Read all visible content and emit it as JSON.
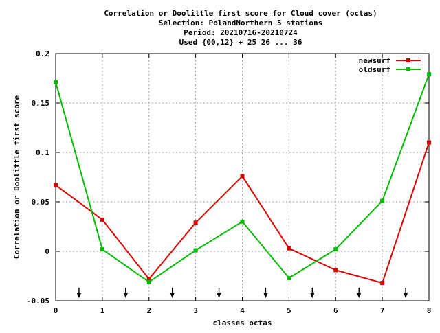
{
  "chart_data": {
    "type": "line",
    "title_lines": [
      "Correlation or Doolittle first score  for Cloud cover (octas)",
      "Selection: PolandNorthern      5 stations",
      "Period: 20210716-20210724",
      "Used {00,12} + 25 26 ... 36"
    ],
    "xlabel": "classes octas",
    "ylabel": "Correlation or Doolittle first score",
    "xlim": [
      0,
      8
    ],
    "ylim": [
      -0.05,
      0.2
    ],
    "x_ticks": [
      0,
      1,
      2,
      3,
      4,
      5,
      6,
      7,
      8
    ],
    "x_tick_labels": [
      "0",
      "1",
      "2",
      "3",
      "4",
      "5",
      "6",
      "7",
      "8"
    ],
    "y_ticks": [
      -0.05,
      0,
      0.05,
      0.1,
      0.15,
      0.2
    ],
    "y_tick_labels": [
      "-0.05",
      "0",
      "0.05",
      "0.1",
      "0.15",
      "0.2"
    ],
    "grid": true,
    "legend_position": "top-right",
    "arrow_markers_x": [
      0.5,
      1.5,
      2.5,
      3.5,
      4.5,
      5.5,
      6.5,
      7.5
    ],
    "series": [
      {
        "name": "newsurf",
        "color": "#dd0000",
        "x": [
          0,
          1,
          2,
          3,
          4,
          5,
          6,
          7,
          8
        ],
        "values": [
          0.067,
          0.032,
          -0.028,
          0.029,
          0.076,
          0.003,
          -0.019,
          -0.032,
          0.11
        ]
      },
      {
        "name": "oldsurf",
        "color": "#00bb00",
        "x": [
          0,
          1,
          2,
          3,
          4,
          5,
          6,
          7,
          8
        ],
        "values": [
          0.171,
          0.002,
          -0.031,
          0.001,
          0.03,
          -0.027,
          0.002,
          0.051,
          0.179
        ]
      }
    ]
  }
}
